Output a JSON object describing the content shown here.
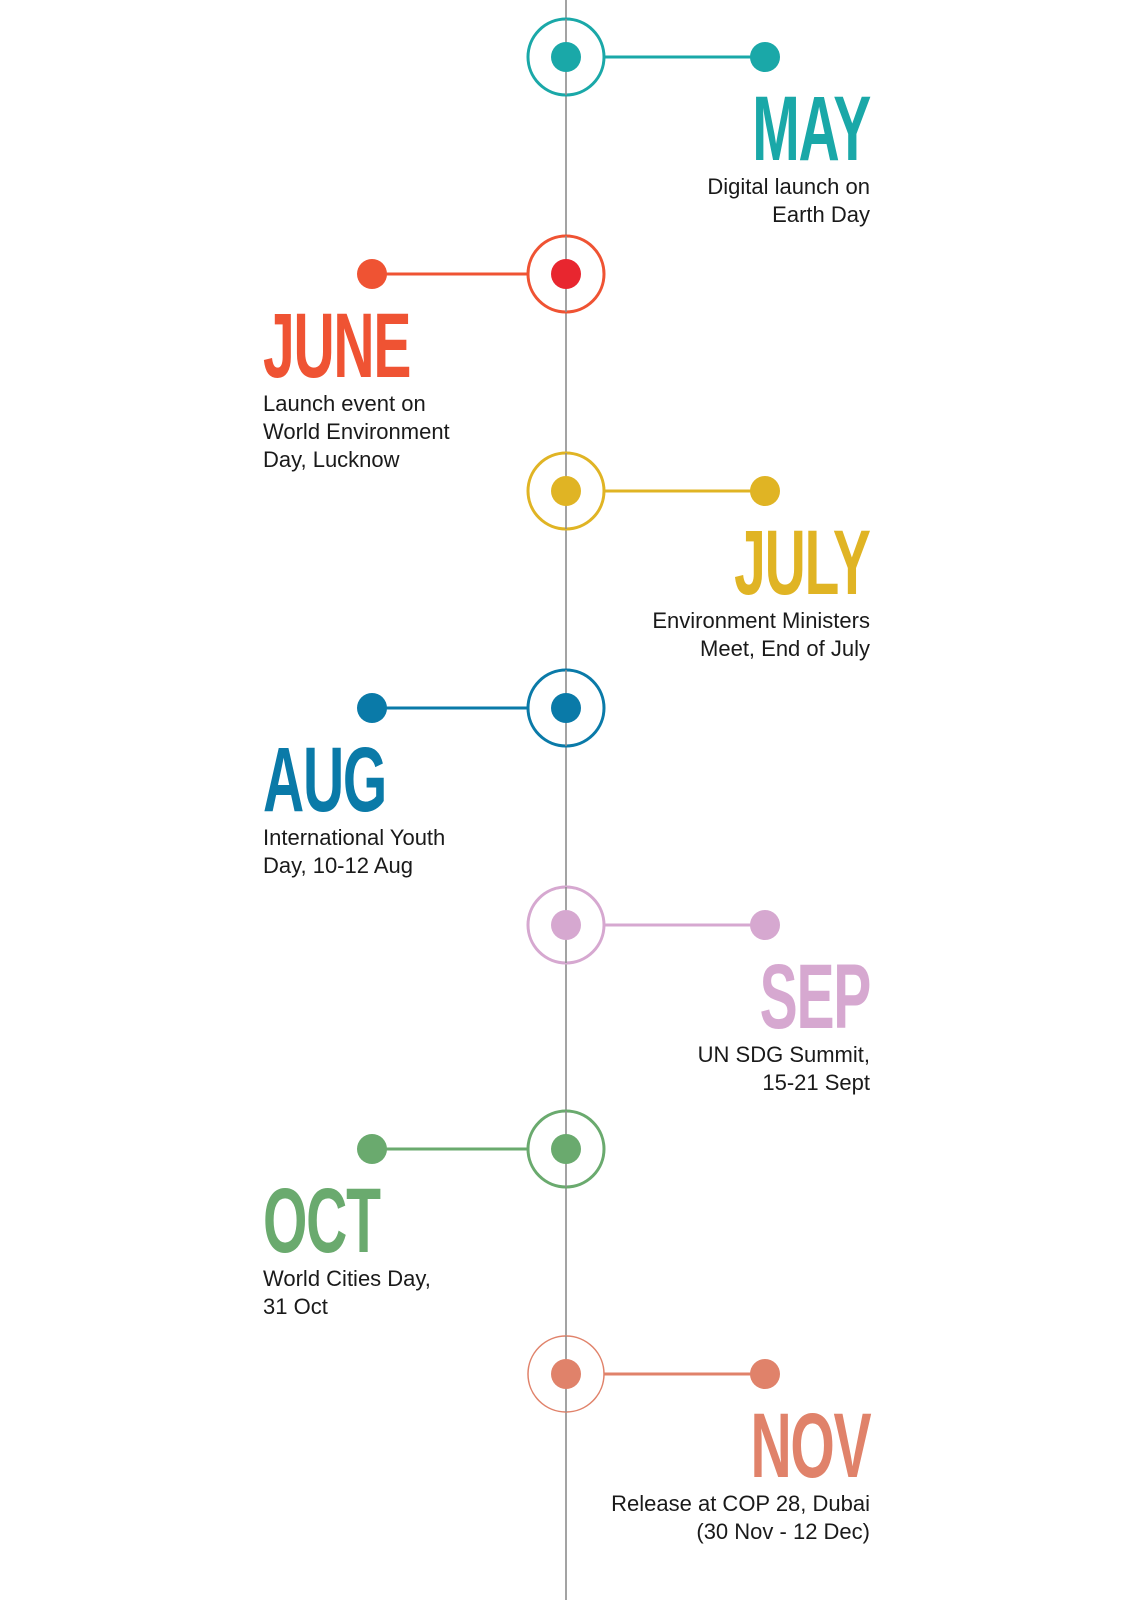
{
  "events": [
    {
      "month": "MAY",
      "description": "Digital launch on\nEarth Day",
      "color": "#1aa8a8",
      "side": "right"
    },
    {
      "month": "JUNE",
      "description": "Launch event on\nWorld Environment\nDay, Lucknow",
      "color": "#ef5333",
      "inner_color": "#e8262f",
      "side": "left"
    },
    {
      "month": "JULY",
      "description": "Environment Ministers\nMeet, End of July",
      "color": "#e0b424",
      "side": "right"
    },
    {
      "month": "AUG",
      "description": "International Youth\nDay, 10-12 Aug",
      "color": "#0a7aa8",
      "side": "left"
    },
    {
      "month": "SEP",
      "description": "UN SDG Summit,\n15-21 Sept",
      "color": "#d6a8d0",
      "side": "right"
    },
    {
      "month": "OCT",
      "description": "World Cities Day,\n31 Oct",
      "color": "#6aaa6e",
      "side": "left"
    },
    {
      "month": "NOV",
      "description": "Release at COP 28, Dubai\n(30 Nov - 12 Dec)",
      "color": "#e0826a",
      "side": "right"
    }
  ],
  "axis_color": "#8c8c8c"
}
